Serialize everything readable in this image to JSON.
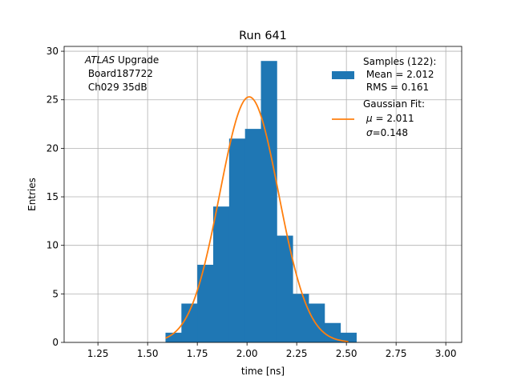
{
  "chart_data": {
    "type": "bar",
    "title": "Run 641",
    "xlabel": "time [ns]",
    "ylabel": "Entries",
    "xlim": [
      1.08,
      3.08
    ],
    "ylim": [
      0,
      30.5
    ],
    "grid": true,
    "x_ticks": [
      "1.25",
      "1.50",
      "1.75",
      "2.00",
      "2.25",
      "2.50",
      "2.75",
      "3.00"
    ],
    "x_tick_values": [
      1.25,
      1.5,
      1.75,
      2.0,
      2.25,
      2.5,
      2.75,
      3.0
    ],
    "y_ticks": [
      "0",
      "5",
      "10",
      "15",
      "20",
      "25",
      "30"
    ],
    "y_tick_values": [
      0,
      5,
      10,
      15,
      20,
      25,
      30
    ],
    "annotation": {
      "italic": "ATLAS",
      "line1_rest": " Upgrade",
      "line2": " Board187722",
      "line3": " Ch029 35dB"
    },
    "legend_position": "upper right",
    "histogram": {
      "name_lines": [
        "Samples (122):",
        " Mean = 2.012",
        " RMS = 0.161"
      ],
      "color": "#1f77b4",
      "bins": [
        {
          "x0": 1.59,
          "x1": 1.67,
          "count": 1
        },
        {
          "x0": 1.67,
          "x1": 1.75,
          "count": 4
        },
        {
          "x0": 1.75,
          "x1": 1.83,
          "count": 8
        },
        {
          "x0": 1.83,
          "x1": 1.91,
          "count": 14
        },
        {
          "x0": 1.91,
          "x1": 1.99,
          "count": 21
        },
        {
          "x0": 1.99,
          "x1": 2.07,
          "count": 22
        },
        {
          "x0": 2.07,
          "x1": 2.15,
          "count": 29
        },
        {
          "x0": 2.15,
          "x1": 2.23,
          "count": 11
        },
        {
          "x0": 2.23,
          "x1": 2.31,
          "count": 5
        },
        {
          "x0": 2.31,
          "x1": 2.39,
          "count": 4
        },
        {
          "x0": 2.39,
          "x1": 2.47,
          "count": 2
        },
        {
          "x0": 2.47,
          "x1": 2.55,
          "count": 1
        }
      ]
    },
    "fit": {
      "name_line": "Gaussian Fit:",
      "mu_label": "μ",
      "mu_text": " = 2.011",
      "sigma_label": "σ",
      "sigma_text": "=0.148",
      "color": "#ff7f0e",
      "mu": 2.011,
      "sigma": 0.148,
      "amplitude": 25.3,
      "x_range": [
        1.59,
        2.51
      ]
    }
  }
}
